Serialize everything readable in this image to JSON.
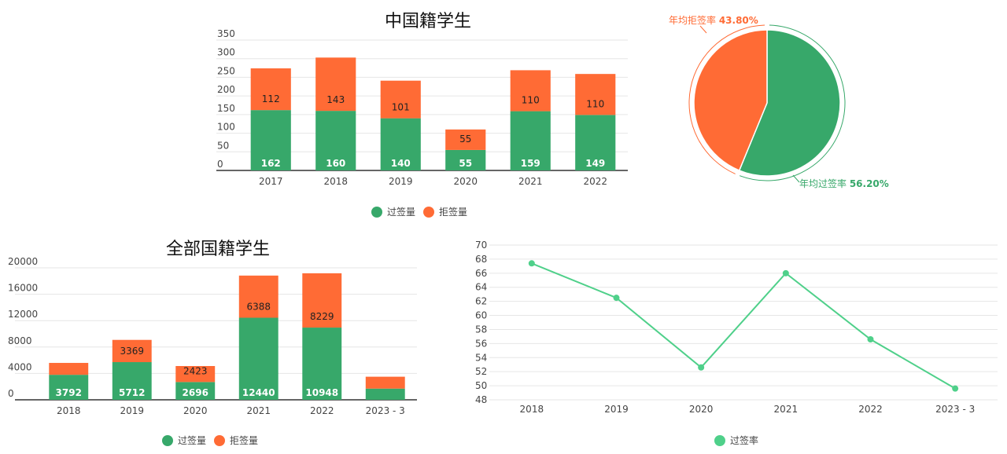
{
  "colors": {
    "pass": "#37a86a",
    "reject": "#ff6b35",
    "line": "#4fd08a",
    "grid": "#e6e6e6",
    "axis": "#444444"
  },
  "chart_data": [
    {
      "type": "bar",
      "title": "中国籍学生",
      "categories": [
        "2017",
        "2018",
        "2019",
        "2020",
        "2021",
        "2022"
      ],
      "series": [
        {
          "name": "过签量",
          "values": [
            162,
            160,
            140,
            55,
            159,
            149
          ]
        },
        {
          "name": "拒签量",
          "values": [
            112,
            143,
            101,
            55,
            110,
            110
          ]
        }
      ],
      "stacked": true,
      "ylim": [
        0,
        350
      ],
      "yticks": [
        0,
        50,
        100,
        150,
        200,
        250,
        300,
        350
      ],
      "legend": "bottom"
    },
    {
      "type": "pie",
      "slices": [
        {
          "label": "年均过签率",
          "value": 56.2,
          "text": "56.20%"
        },
        {
          "label": "年均拒签率",
          "value": 43.8,
          "text": "43.80%"
        }
      ]
    },
    {
      "type": "bar",
      "title": "全部国籍学生",
      "categories": [
        "2018",
        "2019",
        "2020",
        "2021",
        "2022",
        "2023 - 3"
      ],
      "series": [
        {
          "name": "过签量",
          "values": [
            3792,
            5712,
            2696,
            12440,
            10948,
            1700
          ]
        },
        {
          "name": "拒签量",
          "values": [
            1800,
            3369,
            2423,
            6388,
            8229,
            1800
          ]
        }
      ],
      "labels": {
        "过签量": [
          "3792",
          "5712",
          "2696",
          "12440",
          "10948",
          ""
        ],
        "拒签量": [
          "",
          "3369",
          "2423",
          "6388",
          "8229",
          ""
        ]
      },
      "stacked": true,
      "ylim": [
        0,
        20000
      ],
      "yticks": [
        0,
        4000,
        8000,
        12000,
        16000,
        20000
      ],
      "legend": "bottom"
    },
    {
      "type": "line",
      "categories": [
        "2018",
        "2019",
        "2020",
        "2021",
        "2022",
        "2023 - 3"
      ],
      "series": [
        {
          "name": "过签率",
          "values": [
            67.4,
            62.5,
            52.6,
            66.0,
            56.6,
            49.6
          ]
        }
      ],
      "ylim": [
        48,
        70
      ],
      "yticks": [
        48,
        50,
        52,
        54,
        56,
        58,
        60,
        62,
        64,
        66,
        68,
        70
      ],
      "legend": "bottom"
    }
  ]
}
